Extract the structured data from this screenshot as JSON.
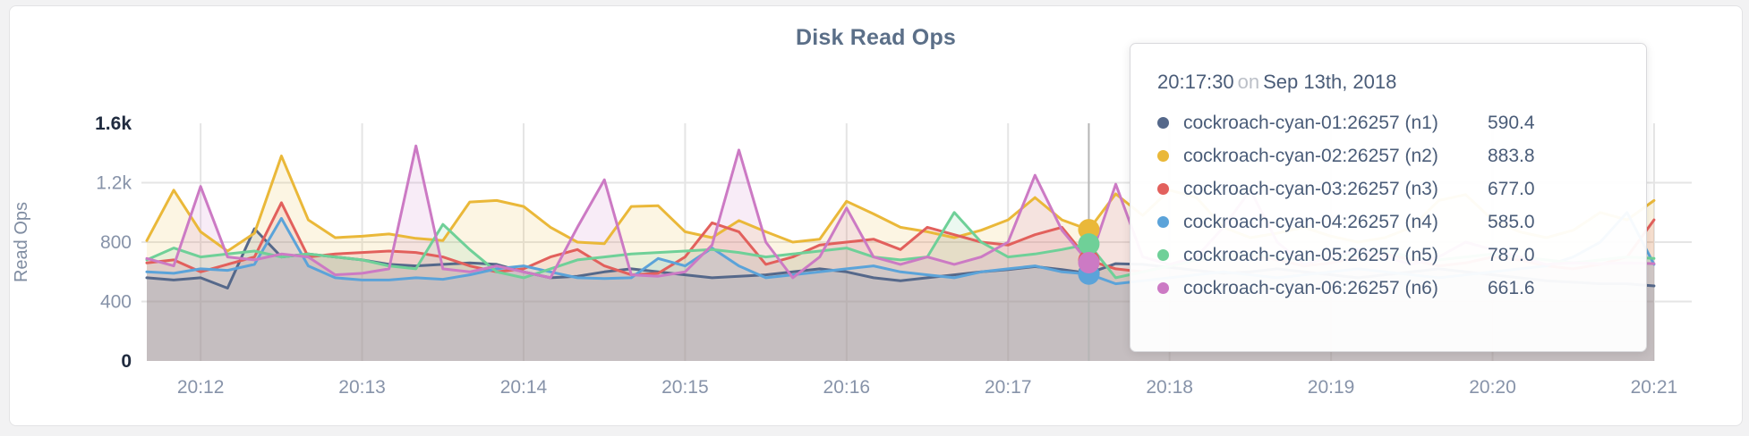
{
  "card": {
    "title": "Disk Read Ops"
  },
  "tooltip": {
    "time": "20:17:30",
    "conjunction": "on",
    "date": "Sep 13th, 2018",
    "rows": [
      {
        "name": "cockroach-cyan-01:26257 (n1)",
        "value": "590.4",
        "color": "#55688a"
      },
      {
        "name": "cockroach-cyan-02:26257 (n2)",
        "value": "883.8",
        "color": "#eab839"
      },
      {
        "name": "cockroach-cyan-03:26257 (n3)",
        "value": "677.0",
        "color": "#e2605c"
      },
      {
        "name": "cockroach-cyan-04:26257 (n4)",
        "value": "585.0",
        "color": "#5ba3d9"
      },
      {
        "name": "cockroach-cyan-05:26257 (n5)",
        "value": "787.0",
        "color": "#6fd098"
      },
      {
        "name": "cockroach-cyan-06:26257 (n6)",
        "value": "661.6",
        "color": "#cc7ac4"
      }
    ]
  },
  "chart_data": {
    "type": "line",
    "title": "Disk Read Ops",
    "xlabel": "",
    "ylabel": "Read Ops",
    "ylim": [
      0,
      1600
    ],
    "y_tick_values": [
      0,
      400,
      800,
      1200,
      1600
    ],
    "y_tick_labels": [
      "0",
      "400",
      "800",
      "1.2k",
      "1.6k"
    ],
    "x_start": "20:11:40",
    "x_step_seconds": 10,
    "x_tick_indices": [
      2,
      8,
      14,
      20,
      26,
      32,
      38,
      44,
      50,
      56
    ],
    "x_tick_labels": [
      "20:12",
      "20:13",
      "20:14",
      "20:15",
      "20:16",
      "20:17",
      "20:18",
      "20:19",
      "20:20",
      "20:21"
    ],
    "grid": true,
    "legend_position": "tooltip-only",
    "hover_index": 35,
    "hover_time": "20:17:30",
    "series": [
      {
        "name": "cockroach-cyan-01:26257 (n1)",
        "color": "#55688a",
        "values": [
          560,
          545,
          560,
          490,
          890,
          700,
          720,
          700,
          680,
          650,
          640,
          650,
          660,
          650,
          600,
          560,
          570,
          600,
          620,
          600,
          580,
          560,
          570,
          580,
          600,
          620,
          600,
          560,
          540,
          560,
          580,
          600,
          615,
          635,
          615,
          590.4,
          655,
          650,
          630,
          610,
          590,
          600,
          620,
          600,
          580,
          560,
          580,
          600,
          620,
          600,
          580,
          560,
          540,
          530,
          520,
          520,
          505
        ]
      },
      {
        "name": "cockroach-cyan-02:26257 (n2)",
        "color": "#eab839",
        "values": [
          810,
          1150,
          870,
          740,
          860,
          1380,
          950,
          830,
          840,
          855,
          825,
          810,
          1070,
          1080,
          1040,
          900,
          800,
          790,
          1040,
          1045,
          870,
          830,
          945,
          870,
          800,
          820,
          1075,
          990,
          900,
          870,
          830,
          880,
          950,
          1100,
          950,
          883.8,
          1125,
          980,
          1150,
          1100,
          900,
          830,
          860,
          900,
          840,
          800,
          830,
          900,
          1080,
          1120,
          950,
          870,
          830,
          880,
          1000,
          950,
          1080
        ]
      },
      {
        "name": "cockroach-cyan-03:26257 (n3)",
        "color": "#e2605c",
        "values": [
          660,
          680,
          600,
          650,
          700,
          1065,
          700,
          720,
          730,
          740,
          730,
          700,
          640,
          600,
          620,
          700,
          750,
          640,
          580,
          590,
          700,
          930,
          870,
          650,
          700,
          780,
          800,
          820,
          750,
          900,
          850,
          800,
          780,
          850,
          900,
          677,
          620,
          600,
          640,
          680,
          700,
          720,
          680,
          640,
          660,
          700,
          720,
          680,
          640,
          660,
          700,
          680,
          640,
          620,
          650,
          700,
          950
        ]
      },
      {
        "name": "cockroach-cyan-04:26257 (n4)",
        "color": "#5ba3d9",
        "values": [
          600,
          590,
          620,
          610,
          650,
          960,
          640,
          560,
          545,
          545,
          560,
          550,
          580,
          620,
          640,
          600,
          560,
          555,
          560,
          690,
          640,
          760,
          640,
          560,
          580,
          600,
          620,
          640,
          600,
          580,
          560,
          600,
          620,
          640,
          600,
          585,
          520,
          540,
          560,
          580,
          600,
          580,
          560,
          580,
          600,
          620,
          600,
          580,
          560,
          580,
          600,
          620,
          640,
          700,
          800,
          1000,
          650
        ]
      },
      {
        "name": "cockroach-cyan-05:26257 (n5)",
        "color": "#6fd098",
        "values": [
          680,
          760,
          700,
          720,
          740,
          700,
          720,
          700,
          680,
          640,
          620,
          920,
          750,
          600,
          560,
          620,
          680,
          700,
          720,
          730,
          740,
          750,
          730,
          700,
          720,
          740,
          760,
          700,
          680,
          700,
          1000,
          800,
          700,
          720,
          750,
          787,
          560,
          600,
          640,
          680,
          700,
          720,
          700,
          680,
          700,
          720,
          740,
          700,
          680,
          700,
          720,
          700,
          680,
          660,
          680,
          700,
          690
        ]
      },
      {
        "name": "cockroach-cyan-06:26257 (n6)",
        "color": "#cc7ac4",
        "values": [
          690,
          640,
          1175,
          700,
          680,
          720,
          700,
          580,
          590,
          620,
          1448,
          620,
          600,
          640,
          600,
          560,
          900,
          1220,
          580,
          570,
          600,
          780,
          1420,
          800,
          560,
          700,
          1030,
          700,
          650,
          700,
          650,
          700,
          800,
          1250,
          880,
          661.6,
          1190,
          700,
          650,
          700,
          900,
          1150,
          800,
          650,
          700,
          750,
          700,
          650,
          700,
          800,
          750,
          700,
          650,
          660,
          655,
          660,
          655
        ]
      }
    ]
  }
}
